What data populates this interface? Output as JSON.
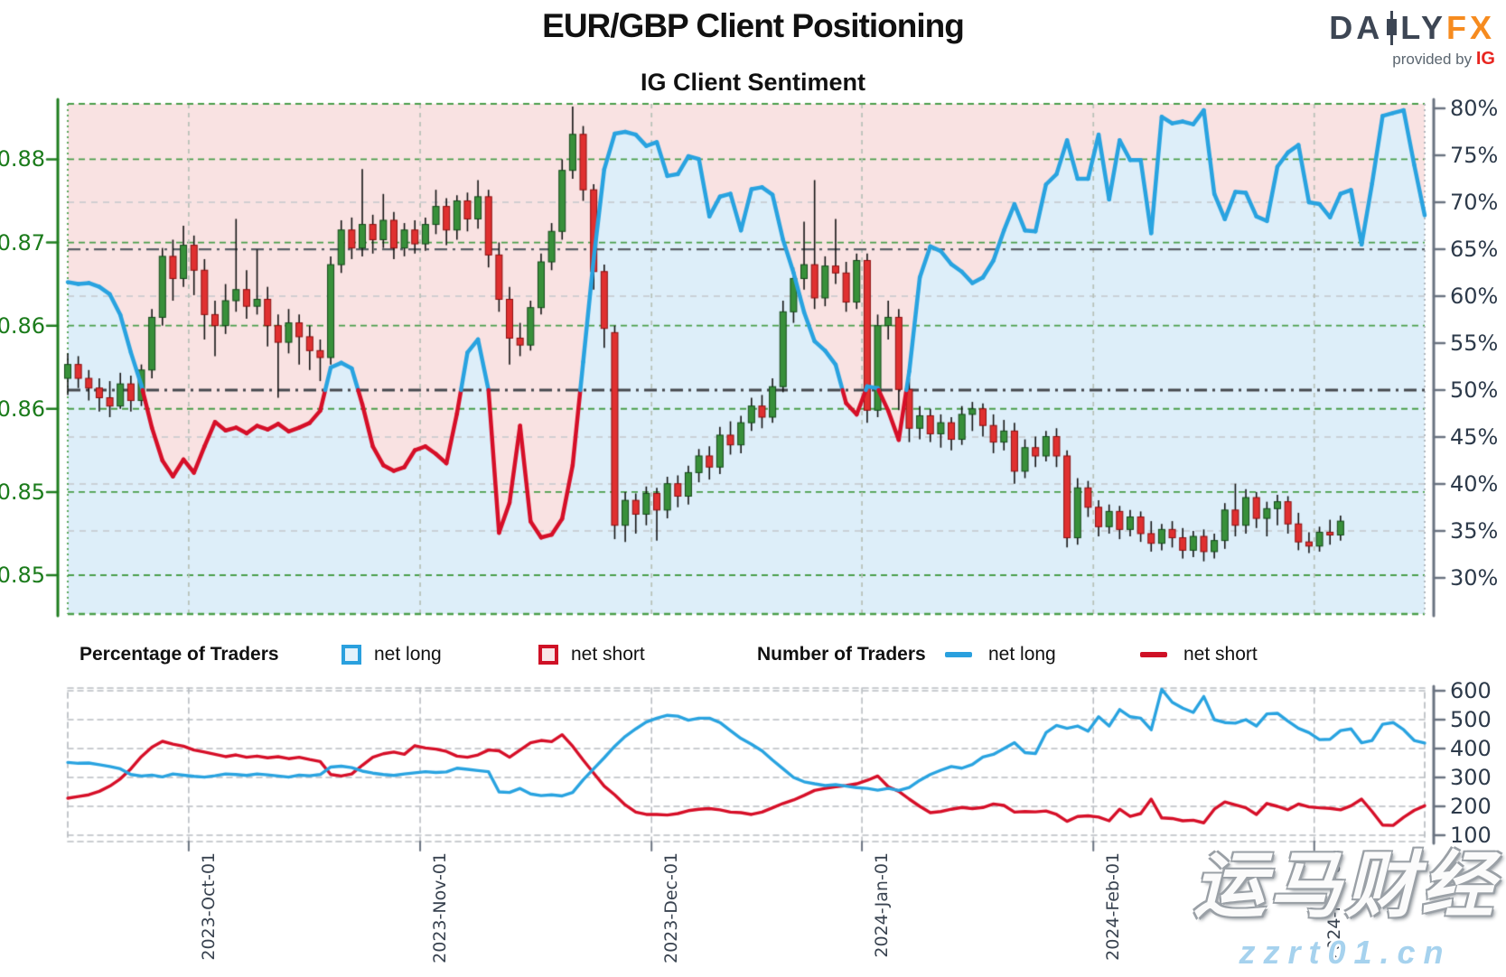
{
  "header": {
    "title": "EUR/GBP Client Positioning",
    "subtitle": "IG Client Sentiment",
    "logo": {
      "part1": "DA",
      "part2": "LY",
      "part3": "FX",
      "provided": "provided by",
      "ig": "IG"
    }
  },
  "legend": {
    "pct_title": "Percentage of Traders",
    "pct_long": "net long",
    "pct_short": "net short",
    "num_title": "Number of Traders",
    "num_long": "net long",
    "num_short": "net short"
  },
  "watermark": {
    "line1": "运马财经",
    "line2": "zzrt01.cn"
  },
  "colors": {
    "bg_above": "#f9e2e2",
    "bg_below": "#ddeef9",
    "line_long": "#29a3e0",
    "line_short": "#d60f28",
    "candle_up": "#38903a",
    "candle_up_edge": "#14491a",
    "candle_down": "#e03030",
    "candle_down_edge": "#8c1010",
    "grid_green": "#4a9e4a",
    "grid_gray": "#b9bdc2",
    "axis_left": "#1e7d1e",
    "axis_right": "#6a7380",
    "label_left": "#1b7b1b",
    "label_right": "#2d3a4a"
  },
  "chart_data": {
    "type": "candlestick+line",
    "title": "EUR/GBP Client Positioning",
    "subtitle": "IG Client Sentiment",
    "n_points": 130,
    "x_axis": {
      "tick_labels": [
        "2023-Oct-01",
        "2023-Nov-01",
        "2023-Dec-01",
        "2024-Jan-01",
        "2024-Feb-01",
        "2024-Mar-01"
      ],
      "tick_index": [
        11.5,
        33.5,
        55.5,
        75.5,
        97.5,
        118.5
      ]
    },
    "price_axis": {
      "range": [
        0.8442,
        0.881
      ],
      "tick_values": [
        0.877,
        0.871,
        0.865,
        0.859,
        0.853,
        0.847
      ],
      "tick_labels": [
        "0.88",
        "0.87",
        "0.86",
        "0.86",
        "0.85",
        "0.85"
      ]
    },
    "pct_axis": {
      "range": [
        25.5,
        80.5
      ],
      "tick_values": [
        80,
        75,
        70,
        65,
        60,
        55,
        50,
        45,
        40,
        35,
        30
      ],
      "tick_labels": [
        "80%",
        "75%",
        "70%",
        "65%",
        "60%",
        "55%",
        "50%",
        "45%",
        "40%",
        "35%",
        "30%"
      ]
    },
    "count_axis": {
      "tick_values": [
        600,
        500,
        400,
        300,
        200,
        100
      ],
      "tick_labels": [
        "600",
        "500",
        "400",
        "300",
        "200",
        "100"
      ]
    },
    "gridlines": {
      "pct_gray": [
        70,
        60,
        45,
        40,
        35
      ],
      "dashdot_price": 0.8705,
      "dashdot_pct": 50
    },
    "candles_ohlc": [
      [
        0.8612,
        0.863,
        0.86,
        0.8622
      ],
      [
        0.8622,
        0.8628,
        0.8605,
        0.8612
      ],
      [
        0.8612,
        0.8618,
        0.8596,
        0.8605
      ],
      [
        0.8605,
        0.8612,
        0.8588,
        0.8598
      ],
      [
        0.8598,
        0.861,
        0.8584,
        0.8592
      ],
      [
        0.8592,
        0.8616,
        0.859,
        0.8608
      ],
      [
        0.8608,
        0.8614,
        0.8588,
        0.8596
      ],
      [
        0.8596,
        0.8622,
        0.8592,
        0.8618
      ],
      [
        0.8618,
        0.8662,
        0.8612,
        0.8656
      ],
      [
        0.8656,
        0.8706,
        0.865,
        0.87
      ],
      [
        0.87,
        0.8712,
        0.8668,
        0.8684
      ],
      [
        0.8684,
        0.8722,
        0.8678,
        0.8708
      ],
      [
        0.8708,
        0.8715,
        0.8672,
        0.869
      ],
      [
        0.869,
        0.8698,
        0.864,
        0.8658
      ],
      [
        0.8658,
        0.8668,
        0.8628,
        0.865
      ],
      [
        0.865,
        0.868,
        0.8644,
        0.8668
      ],
      [
        0.8668,
        0.8727,
        0.866,
        0.8676
      ],
      [
        0.8676,
        0.869,
        0.8655,
        0.8664
      ],
      [
        0.8664,
        0.8705,
        0.8658,
        0.8669
      ],
      [
        0.8669,
        0.8678,
        0.8635,
        0.865
      ],
      [
        0.865,
        0.8658,
        0.8598,
        0.8638
      ],
      [
        0.8638,
        0.8662,
        0.863,
        0.8652
      ],
      [
        0.8652,
        0.8658,
        0.8622,
        0.8642
      ],
      [
        0.8642,
        0.865,
        0.8618,
        0.8632
      ],
      [
        0.8632,
        0.864,
        0.861,
        0.8627
      ],
      [
        0.8627,
        0.87,
        0.8622,
        0.8694
      ],
      [
        0.8694,
        0.8726,
        0.8688,
        0.8719
      ],
      [
        0.8719,
        0.8728,
        0.8698,
        0.8706
      ],
      [
        0.8706,
        0.8763,
        0.87,
        0.8723
      ],
      [
        0.8723,
        0.873,
        0.8702,
        0.8712
      ],
      [
        0.8712,
        0.8745,
        0.8706,
        0.8726
      ],
      [
        0.8726,
        0.8732,
        0.8698,
        0.8706
      ],
      [
        0.8706,
        0.8724,
        0.87,
        0.8719
      ],
      [
        0.8719,
        0.8726,
        0.8702,
        0.8709
      ],
      [
        0.8709,
        0.8728,
        0.8704,
        0.8723
      ],
      [
        0.8723,
        0.8748,
        0.8716,
        0.8736
      ],
      [
        0.8736,
        0.8742,
        0.8708,
        0.8719
      ],
      [
        0.8719,
        0.8744,
        0.8712,
        0.874
      ],
      [
        0.874,
        0.8746,
        0.8718,
        0.8727
      ],
      [
        0.8727,
        0.8755,
        0.872,
        0.8743
      ],
      [
        0.8743,
        0.8748,
        0.8692,
        0.8701
      ],
      [
        0.8701,
        0.871,
        0.866,
        0.8669
      ],
      [
        0.8669,
        0.8678,
        0.8622,
        0.8641
      ],
      [
        0.8641,
        0.8652,
        0.8628,
        0.8636
      ],
      [
        0.8636,
        0.8668,
        0.8632,
        0.8663
      ],
      [
        0.8663,
        0.8702,
        0.8658,
        0.8696
      ],
      [
        0.8696,
        0.8724,
        0.869,
        0.8718
      ],
      [
        0.8718,
        0.877,
        0.8712,
        0.8762
      ],
      [
        0.8762,
        0.8808,
        0.8756,
        0.8788
      ],
      [
        0.8788,
        0.8794,
        0.874,
        0.8748
      ],
      [
        0.8748,
        0.8752,
        0.8676,
        0.8689
      ],
      [
        0.8689,
        0.8694,
        0.8634,
        0.8648
      ],
      [
        0.8645,
        0.865,
        0.8496,
        0.8506
      ],
      [
        0.8506,
        0.853,
        0.8494,
        0.8524
      ],
      [
        0.8524,
        0.8529,
        0.85,
        0.8514
      ],
      [
        0.8514,
        0.8534,
        0.8506,
        0.8529
      ],
      [
        0.8529,
        0.8533,
        0.8495,
        0.8517
      ],
      [
        0.8517,
        0.8541,
        0.8511,
        0.8536
      ],
      [
        0.8536,
        0.8542,
        0.8519,
        0.8527
      ],
      [
        0.8527,
        0.8549,
        0.8521,
        0.8544
      ],
      [
        0.8544,
        0.8561,
        0.8537,
        0.8556
      ],
      [
        0.8556,
        0.8563,
        0.8539,
        0.8548
      ],
      [
        0.8548,
        0.8577,
        0.8543,
        0.8571
      ],
      [
        0.8571,
        0.8581,
        0.8557,
        0.8564
      ],
      [
        0.8564,
        0.8585,
        0.8558,
        0.858
      ],
      [
        0.858,
        0.8598,
        0.8574,
        0.8592
      ],
      [
        0.8592,
        0.86,
        0.8576,
        0.8584
      ],
      [
        0.8584,
        0.8612,
        0.858,
        0.8606
      ],
      [
        0.8606,
        0.8668,
        0.8602,
        0.866
      ],
      [
        0.866,
        0.8692,
        0.8652,
        0.8684
      ],
      [
        0.8684,
        0.8725,
        0.8676,
        0.8694
      ],
      [
        0.8694,
        0.8755,
        0.8662,
        0.867
      ],
      [
        0.867,
        0.87,
        0.8664,
        0.8693
      ],
      [
        0.8693,
        0.8727,
        0.868,
        0.8688
      ],
      [
        0.8688,
        0.8696,
        0.866,
        0.8667
      ],
      [
        0.8667,
        0.8702,
        0.8662,
        0.8697
      ],
      [
        0.8697,
        0.8702,
        0.858,
        0.8589
      ],
      [
        0.8589,
        0.8658,
        0.8584,
        0.865
      ],
      [
        0.865,
        0.8668,
        0.864,
        0.8656
      ],
      [
        0.8656,
        0.8662,
        0.8589,
        0.8604
      ],
      [
        0.8604,
        0.8612,
        0.8566,
        0.8576
      ],
      [
        0.8576,
        0.8592,
        0.8568,
        0.8585
      ],
      [
        0.8585,
        0.859,
        0.8566,
        0.8572
      ],
      [
        0.8572,
        0.8586,
        0.8562,
        0.858
      ],
      [
        0.858,
        0.8584,
        0.856,
        0.8568
      ],
      [
        0.8568,
        0.8592,
        0.8564,
        0.8586
      ],
      [
        0.8586,
        0.8595,
        0.8574,
        0.859
      ],
      [
        0.859,
        0.8594,
        0.857,
        0.8578
      ],
      [
        0.8578,
        0.8586,
        0.8558,
        0.8566
      ],
      [
        0.8566,
        0.8582,
        0.856,
        0.8574
      ],
      [
        0.8574,
        0.858,
        0.8536,
        0.8545
      ],
      [
        0.8545,
        0.8568,
        0.854,
        0.8562
      ],
      [
        0.8562,
        0.857,
        0.8548,
        0.8556
      ],
      [
        0.8556,
        0.8574,
        0.8552,
        0.857
      ],
      [
        0.857,
        0.8576,
        0.8548,
        0.8556
      ],
      [
        0.8556,
        0.856,
        0.849,
        0.8497
      ],
      [
        0.8497,
        0.854,
        0.8492,
        0.8533
      ],
      [
        0.8533,
        0.8538,
        0.8512,
        0.8519
      ],
      [
        0.8519,
        0.8524,
        0.8498,
        0.8505
      ],
      [
        0.8505,
        0.8521,
        0.85,
        0.8516
      ],
      [
        0.8516,
        0.852,
        0.8496,
        0.8503
      ],
      [
        0.8503,
        0.8517,
        0.8498,
        0.8512
      ],
      [
        0.8512,
        0.8516,
        0.8494,
        0.85
      ],
      [
        0.85,
        0.8509,
        0.8487,
        0.8493
      ],
      [
        0.8493,
        0.8507,
        0.8488,
        0.8503
      ],
      [
        0.8503,
        0.8509,
        0.849,
        0.8497
      ],
      [
        0.8497,
        0.8504,
        0.8482,
        0.8488
      ],
      [
        0.8488,
        0.8502,
        0.8483,
        0.8498
      ],
      [
        0.8498,
        0.8503,
        0.848,
        0.8487
      ],
      [
        0.8487,
        0.85,
        0.8482,
        0.8495
      ],
      [
        0.8495,
        0.8522,
        0.8489,
        0.8517
      ],
      [
        0.8517,
        0.8536,
        0.8498,
        0.8506
      ],
      [
        0.8506,
        0.8532,
        0.85,
        0.8526
      ],
      [
        0.8526,
        0.853,
        0.8504,
        0.8511
      ],
      [
        0.8511,
        0.8523,
        0.8498,
        0.8518
      ],
      [
        0.8518,
        0.8528,
        0.8506,
        0.8523
      ],
      [
        0.8523,
        0.8527,
        0.85,
        0.8507
      ],
      [
        0.8507,
        0.8515,
        0.8488,
        0.8494
      ],
      [
        0.8494,
        0.8501,
        0.8486,
        0.8491
      ],
      [
        0.8491,
        0.8505,
        0.8487,
        0.8501
      ],
      [
        0.8501,
        0.851,
        0.8492,
        0.8499
      ],
      [
        0.8499,
        0.8513,
        0.8495,
        0.8509
      ]
    ],
    "pct_net_long": [
      61.5,
      61.3,
      61.4,
      61.0,
      60.2,
      58.0,
      54.0,
      50.5,
      46.0,
      42.5,
      40.8,
      42.6,
      41.2,
      44.0,
      46.6,
      45.7,
      46.0,
      45.4,
      46.2,
      45.8,
      46.4,
      45.6,
      46.0,
      46.5,
      47.8,
      52.4,
      52.9,
      52.3,
      48.5,
      44.0,
      42.0,
      41.4,
      41.8,
      43.6,
      44.0,
      43.2,
      42.2,
      47.5,
      54.0,
      55.4,
      50.0,
      34.8,
      38.0,
      46.2,
      36.0,
      34.3,
      34.6,
      36.3,
      42.0,
      53.0,
      64.0,
      73.5,
      77.3,
      77.5,
      77.2,
      76.0,
      76.4,
      72.8,
      73.0,
      74.9,
      74.6,
      68.5,
      70.6,
      70.9,
      67.0,
      71.4,
      71.6,
      70.8,
      66.0,
      62.5,
      58.3,
      55.2,
      54.2,
      52.7,
      48.6,
      47.4,
      50.4,
      50.2,
      47.8,
      44.7,
      52.0,
      62.0,
      65.3,
      64.8,
      63.4,
      62.6,
      61.4,
      62.0,
      63.8,
      67.0,
      69.8,
      67.0,
      66.9,
      71.9,
      73.0,
      76.6,
      72.5,
      72.5,
      77.2,
      70.3,
      76.6,
      74.5,
      74.5,
      66.7,
      79.1,
      78.4,
      78.6,
      78.3,
      79.8,
      70.9,
      68.2,
      71.1,
      71.0,
      68.5,
      68.0,
      73.8,
      75.3,
      76.1,
      70.0,
      69.8,
      68.4,
      70.9,
      71.3,
      65.5,
      72.0,
      79.2,
      79.5,
      79.8,
      74.0,
      68.6
    ],
    "num_net_long": [
      352,
      349,
      350,
      344,
      338,
      330,
      310,
      305,
      308,
      302,
      312,
      308,
      304,
      301,
      306,
      312,
      310,
      307,
      312,
      309,
      305,
      301,
      308,
      306,
      310,
      336,
      339,
      334,
      322,
      315,
      310,
      307,
      312,
      316,
      320,
      317,
      319,
      332,
      328,
      324,
      320,
      250,
      248,
      262,
      243,
      237,
      240,
      236,
      248,
      292,
      330,
      368,
      408,
      442,
      468,
      492,
      505,
      515,
      512,
      498,
      505,
      505,
      490,
      462,
      435,
      415,
      392,
      360,
      330,
      300,
      285,
      278,
      272,
      275,
      270,
      265,
      262,
      256,
      262,
      255,
      265,
      290,
      310,
      325,
      338,
      332,
      345,
      371,
      380,
      400,
      420,
      386,
      383,
      455,
      480,
      470,
      478,
      460,
      510,
      478,
      535,
      510,
      505,
      465,
      605,
      560,
      540,
      525,
      580,
      500,
      490,
      488,
      500,
      478,
      520,
      522,
      495,
      470,
      455,
      431,
      432,
      462,
      468,
      420,
      428,
      484,
      490,
      465,
      428,
      419
    ],
    "num_net_short": [
      228,
      234,
      240,
      252,
      270,
      295,
      330,
      372,
      405,
      425,
      415,
      408,
      395,
      388,
      380,
      372,
      378,
      370,
      374,
      368,
      372,
      365,
      370,
      362,
      355,
      310,
      305,
      312,
      342,
      370,
      382,
      388,
      380,
      410,
      402,
      398,
      390,
      374,
      370,
      378,
      395,
      392,
      370,
      395,
      420,
      428,
      424,
      448,
      408,
      360,
      315,
      270,
      240,
      205,
      180,
      172,
      172,
      170,
      175,
      185,
      190,
      192,
      188,
      180,
      178,
      172,
      180,
      195,
      210,
      222,
      238,
      255,
      262,
      268,
      272,
      278,
      290,
      305,
      268,
      252,
      225,
      200,
      178,
      182,
      190,
      196,
      192,
      196,
      208,
      203,
      180,
      182,
      181,
      184,
      172,
      148,
      165,
      167,
      163,
      150,
      190,
      165,
      175,
      225,
      160,
      158,
      150,
      152,
      143,
      190,
      215,
      205,
      195,
      172,
      210,
      200,
      188,
      208,
      198,
      195,
      193,
      188,
      202,
      225,
      182,
      135,
      134,
      162,
      186,
      202
    ]
  }
}
